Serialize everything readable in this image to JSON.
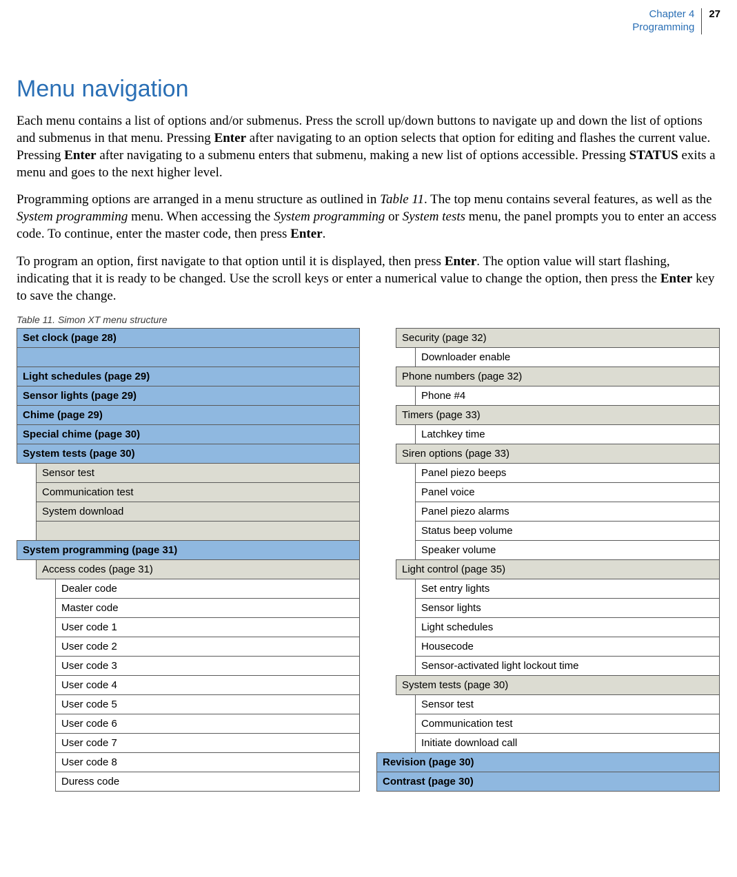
{
  "header": {
    "chapter_line1": "Chapter 4",
    "chapter_line2": "Programming",
    "page_number": "27"
  },
  "title": "Menu navigation",
  "paragraphs": {
    "p1_a": "Each menu contains a list of options and/or submenus. Press the scroll up/down buttons to navigate up and down the list of options and submenus in that menu. Pressing ",
    "p1_enter1": "Enter",
    "p1_b": " after navigating to an option selects that option for editing and flashes the current value. Pressing ",
    "p1_enter2": "Enter",
    "p1_c": " after navigating to a submenu enters that submenu, making a new list of options accessible. Pressing ",
    "p1_status": "STATUS",
    "p1_d": " exits a menu and goes to the next higher level.",
    "p2_a": "Programming options are arranged in a menu structure as outlined in ",
    "p2_table": "Table 11",
    "p2_b": ". The top menu contains several features, as well as the ",
    "p2_sysprog1": "System programming",
    "p2_c": " menu. When accessing the ",
    "p2_sysprog2": "System programming",
    "p2_d": " or ",
    "p2_systests": "System tests",
    "p2_e": " menu, the panel prompts you to enter an access code. To continue, enter the master code, then press ",
    "p2_enter": "Enter",
    "p2_f": ".",
    "p3_a": "To program an option, first navigate to that option until it is displayed, then press ",
    "p3_enter1": "Enter",
    "p3_b": ". The option value will start flashing, indicating that it is ready to be changed. Use the scroll keys or enter a numerical value to change the option, then press the ",
    "p3_enter2": "Enter",
    "p3_c": " key to save the change."
  },
  "table_caption": "Table 11.   Simon XT  menu structure",
  "left_col": {
    "r0": "Set clock (page 28)",
    "r2": "Light schedules (page 29)",
    "r3": "Sensor lights (page 29)",
    "r4": "Chime (page 29)",
    "r5": "Special chime (page 30)",
    "r6": "System tests (page 30)",
    "r7": "Sensor test",
    "r8": "Communication test",
    "r9": "System download",
    "r11": "System programming (page 31)",
    "r12": "Access codes (page 31)",
    "r13": "Dealer code",
    "r14": "Master code",
    "r15": "User code 1",
    "r16": "User code 2",
    "r17": "User code 3",
    "r18": "User code 4",
    "r19": "User code 5",
    "r20": "User code 6",
    "r21": "User code 7",
    "r22": "User code 8",
    "r23": "Duress code"
  },
  "right_col": {
    "r0": "Security (page 32)",
    "r1": "Downloader enable",
    "r2": "Phone numbers (page 32)",
    "r3": "Phone #4",
    "r4": "Timers (page 33)",
    "r5": "Latchkey time",
    "r6": "Siren options (page 33)",
    "r7": "Panel piezo beeps",
    "r8": "Panel voice",
    "r9": "Panel piezo alarms",
    "r10": "Status beep volume",
    "r11": "Speaker volume",
    "r12": "Light control (page 35)",
    "r13": "Set entry lights",
    "r14": "Sensor lights",
    "r15": "Light schedules",
    "r16": "Housecode",
    "r17": "Sensor-activated light lockout time",
    "r18": "System tests (page 30)",
    "r19": "Sensor test",
    "r20": "Communication test",
    "r21": "Initiate download call",
    "r22": "Revision (page 30)",
    "r23": "Contrast (page 30)"
  },
  "colors": {
    "accent_blue": "#2a6fb5",
    "header_blue_bg": "#8fb8e0",
    "gray_bg": "#dcdcd2",
    "border": "#5a5a5a"
  }
}
